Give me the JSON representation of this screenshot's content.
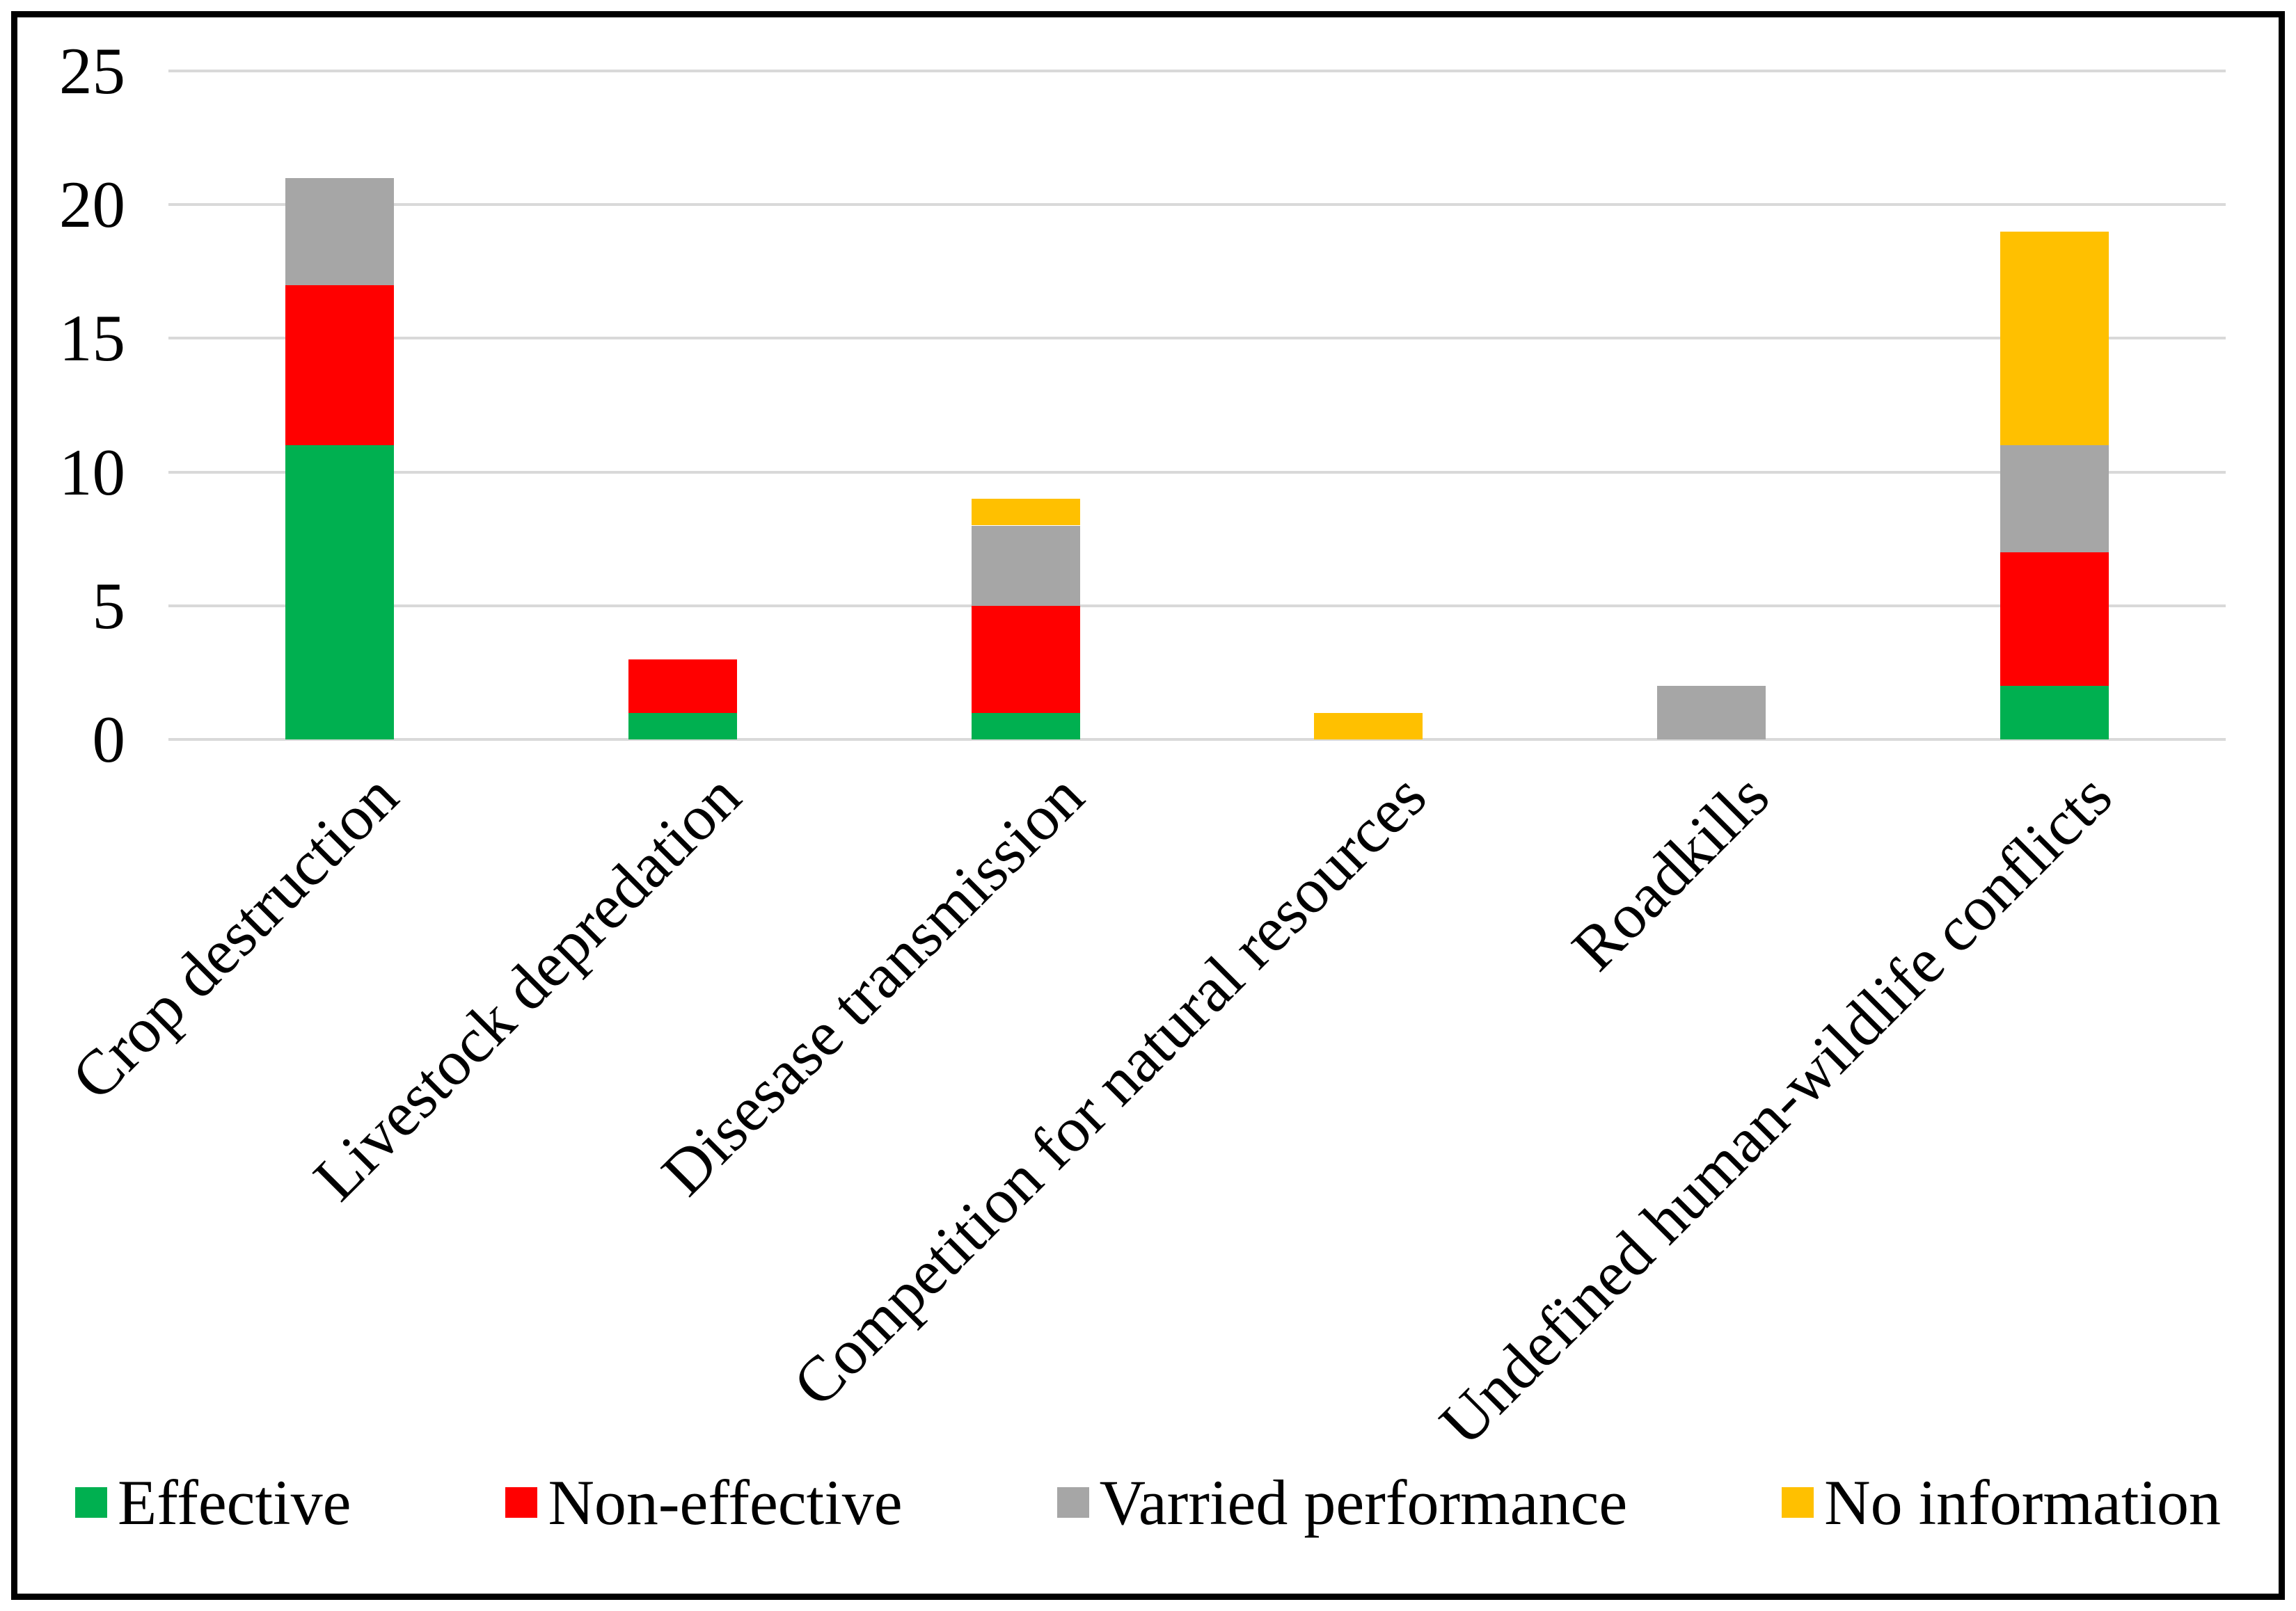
{
  "chart_data": {
    "type": "bar",
    "stacked": true,
    "title": "",
    "xlabel": "",
    "ylabel": "",
    "categories": [
      "Crop destruction",
      "Livestock depredation",
      "Disesase transmission",
      "Competition for natural resources",
      "Roadkills",
      "Undefined human-wildlife conflicts"
    ],
    "series": [
      {
        "name": "Effective",
        "color": "#00B050",
        "values": [
          11,
          1,
          1,
          0,
          0,
          2
        ]
      },
      {
        "name": "Non-effective",
        "color": "#FF0000",
        "values": [
          6,
          2,
          4,
          0,
          0,
          5
        ]
      },
      {
        "name": "Varried performance",
        "color": "#A6A6A6",
        "values": [
          4,
          0,
          3,
          0,
          2,
          4
        ]
      },
      {
        "name": "No information",
        "color": "#FFC000",
        "values": [
          0,
          0,
          1,
          1,
          0,
          8
        ]
      }
    ],
    "totals": [
      21,
      3,
      9,
      1,
      2,
      19
    ],
    "ylim": [
      0,
      25
    ],
    "yticks": [
      "0",
      "5",
      "10",
      "15",
      "20",
      "25"
    ],
    "grid": true,
    "gridline_color": "#D9D9D9",
    "legend_position": "bottom",
    "category_label_rotation_deg": 45
  },
  "frame": {
    "border_color": "#000000",
    "background": "#FFFFFF"
  }
}
